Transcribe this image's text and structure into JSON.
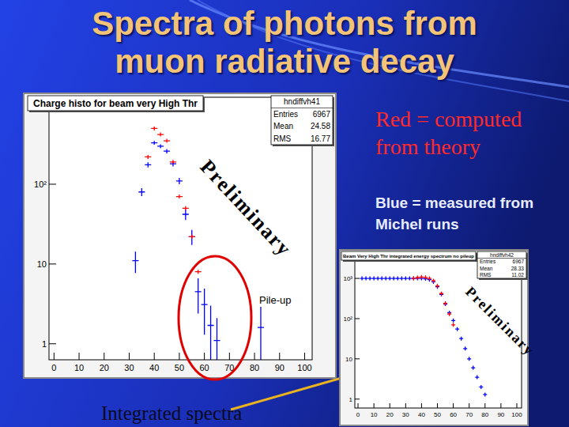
{
  "slide": {
    "title": "Spectra of photons from muon radiative decay",
    "notes": [
      "Red = computed from theory",
      "Blue = measured from Michel runs",
      "Integrated spectra"
    ]
  },
  "chart_data": [
    {
      "type": "scatter",
      "title": "Charge histo for beam very High Thr",
      "log": "y",
      "xlim": [
        -2,
        103
      ],
      "ylim": [
        0.63,
        1230
      ],
      "xticks": [
        0,
        10,
        20,
        30,
        40,
        50,
        60,
        70,
        80,
        90,
        100
      ],
      "yticks": [
        1,
        10,
        {
          "value": 100,
          "label": "10²"
        }
      ],
      "stats_name": "hndiffvh41",
      "stats": [
        {
          "label": "Entries",
          "value": 6967
        },
        {
          "label": "Mean",
          "value": 24.58
        },
        {
          "label": "RMS",
          "value": 16.77
        }
      ],
      "annotations": [
        "Preliminary",
        "Pile-up"
      ],
      "series": [
        {
          "color": "#0000ff",
          "marker": "cross",
          "x": [
            32.5,
            35,
            37.5,
            40,
            42.5,
            45,
            47.5,
            50,
            52.5,
            55,
            57.5,
            60,
            62.5,
            65,
            82.5
          ],
          "values": [
            11,
            80,
            175,
            330,
            300,
            260,
            180,
            110,
            42,
            22,
            4.5,
            3.1,
            1.7,
            1.1,
            1.6
          ],
          "errors": [
            3.3,
            9,
            13,
            18,
            17,
            16,
            13,
            10,
            6.5,
            4.7,
            2.1,
            1.8,
            1.3,
            1,
            1.3
          ]
        },
        {
          "color": "#ff0000",
          "marker": "cross",
          "x": [
            37.5,
            40,
            42.5,
            45,
            47.5,
            50,
            52.5,
            55,
            57.5
          ],
          "values": [
            220,
            500,
            420,
            350,
            190,
            70,
            50,
            22,
            8
          ]
        }
      ]
    },
    {
      "type": "scatter",
      "title": "Beam Very High Thr integrated energy spectrum no pileup",
      "log": "y",
      "xlim": [
        -2,
        103
      ],
      "ylim": [
        0.6,
        3900
      ],
      "xticks": [
        0,
        10,
        20,
        30,
        40,
        50,
        60,
        70,
        80,
        90,
        100
      ],
      "yticks": [
        1,
        10,
        {
          "value": 100,
          "label": "10²"
        },
        {
          "value": 1000,
          "label": "10³"
        }
      ],
      "stats_name": "hndiffvh42",
      "stats": [
        {
          "label": "Entries",
          "value": 6967
        },
        {
          "label": "Mean",
          "value": 28.33
        },
        {
          "label": "RMS",
          "value": 11.02
        }
      ],
      "annotations": [
        "Preliminary"
      ],
      "series": [
        {
          "color": "#0000ff",
          "marker": "cross",
          "x": [
            2.5,
            5,
            7.5,
            10,
            12.5,
            15,
            17.5,
            20,
            22.5,
            25,
            27.5,
            30,
            32.5,
            35,
            37.5,
            40,
            42.5,
            45,
            47.5,
            50,
            52.5,
            55,
            57.5,
            60,
            62.5,
            65,
            67.5,
            70,
            72.5,
            75,
            77.5,
            80
          ],
          "values": [
            1000,
            1000,
            1000,
            1000,
            1000,
            1000,
            1000,
            1000,
            1000,
            1000,
            1000,
            1000,
            1000,
            1000,
            1000,
            1000,
            980,
            930,
            820,
            620,
            400,
            230,
            140,
            90,
            55,
            32,
            18,
            10,
            6,
            3.5,
            2,
            1.3
          ]
        },
        {
          "color": "#ff0000",
          "marker": "cross",
          "x": [
            35,
            37.5,
            40,
            42.5,
            45,
            47.5,
            50,
            52.5,
            55,
            57.5,
            60
          ],
          "values": [
            1000,
            1050,
            1080,
            1060,
            1000,
            880,
            650,
            420,
            240,
            130,
            70
          ]
        }
      ]
    }
  ]
}
